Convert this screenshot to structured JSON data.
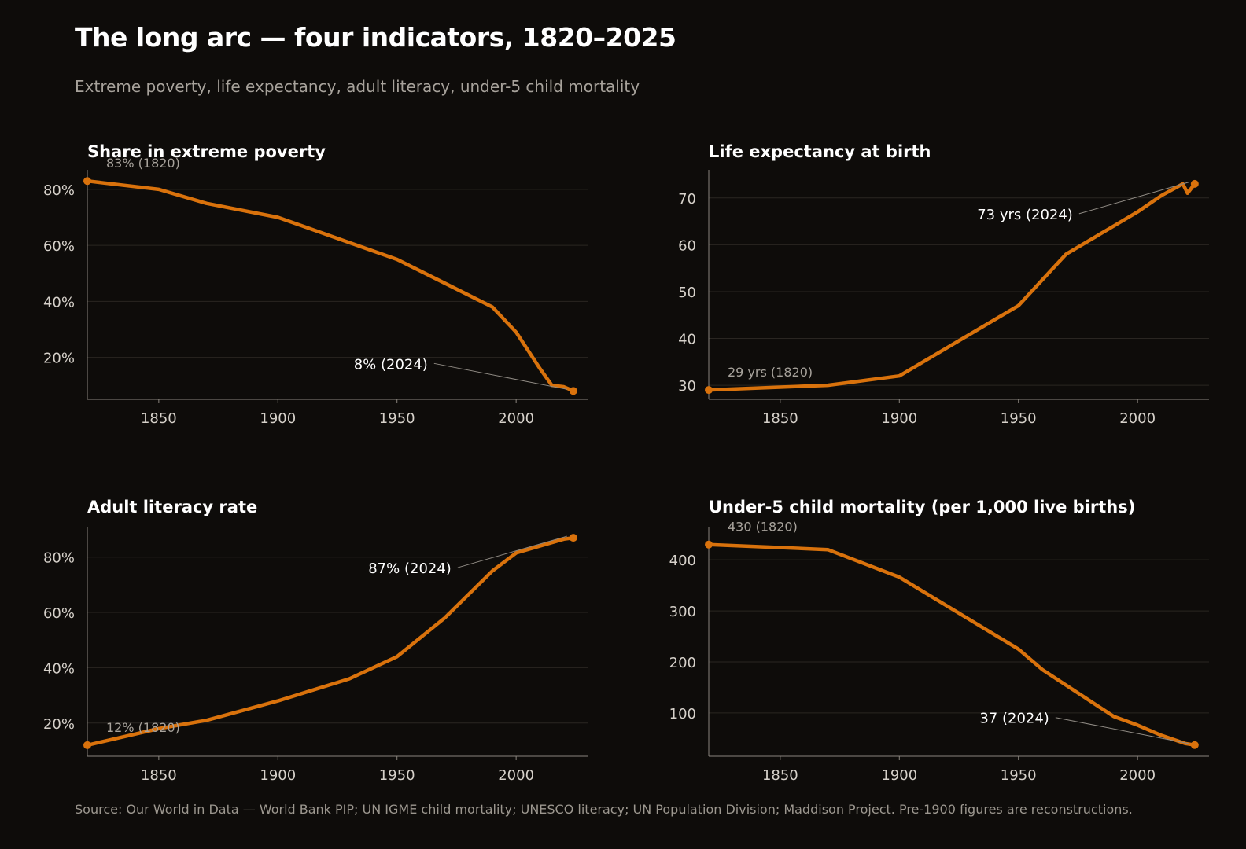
{
  "page": {
    "title": "The long arc — four indicators, 1820–2025",
    "subtitle": "Extreme poverty, life expectancy, adult literacy, under-5 child mortality",
    "source": "Source: Our World in Data — World Bank PIP; UN IGME child mortality; UNESCO literacy; UN Population Division; Maddison Project. Pre-1900 figures are reconstructions."
  },
  "colors": {
    "background": "#0e0c0a",
    "accent": "#d9720c"
  },
  "chart_data": [
    {
      "id": "poverty",
      "type": "line",
      "title": "Share in extreme poverty",
      "x": [
        1820,
        1850,
        1870,
        1900,
        1930,
        1950,
        1970,
        1990,
        2000,
        2010,
        2015,
        2020,
        2024
      ],
      "values": [
        83,
        80,
        75,
        70,
        61,
        55,
        46.5,
        38,
        29,
        16,
        10,
        9.5,
        8
      ],
      "xlim": [
        1820,
        2030
      ],
      "ylim": [
        5,
        87
      ],
      "xticks": [
        1850,
        1900,
        1950,
        2000
      ],
      "yticks": [
        20,
        40,
        60,
        80
      ],
      "ytick_labels": [
        "20%",
        "40%",
        "60%",
        "80%"
      ],
      "start_label": "83% (1820)",
      "end_label": "8% (2024)",
      "end_label_position": "left"
    },
    {
      "id": "life",
      "type": "line",
      "title": "Life expectancy at birth",
      "x": [
        1820,
        1870,
        1900,
        1950,
        1970,
        1990,
        2000,
        2010,
        2019,
        2021,
        2024
      ],
      "values": [
        29,
        30,
        32,
        47,
        58,
        64,
        67,
        70.5,
        73,
        71,
        73
      ],
      "xlim": [
        1820,
        2030
      ],
      "ylim": [
        27,
        76
      ],
      "xticks": [
        1850,
        1900,
        1950,
        2000
      ],
      "yticks": [
        30,
        40,
        50,
        60,
        70
      ],
      "ytick_labels": [
        "30",
        "40",
        "50",
        "60",
        "70"
      ],
      "start_label": "29 yrs (1820)",
      "end_label": "73 yrs (2024)",
      "end_label_position": "below-left"
    },
    {
      "id": "literacy",
      "type": "line",
      "title": "Adult literacy rate",
      "x": [
        1820,
        1850,
        1870,
        1900,
        1930,
        1950,
        1970,
        1990,
        2000,
        2010,
        2020,
        2024
      ],
      "values": [
        12,
        18,
        21,
        28,
        36,
        44,
        58,
        75,
        81.5,
        84,
        86.5,
        87
      ],
      "xlim": [
        1820,
        2030
      ],
      "ylim": [
        8,
        91
      ],
      "xticks": [
        1850,
        1900,
        1950,
        2000
      ],
      "yticks": [
        20,
        40,
        60,
        80
      ],
      "ytick_labels": [
        "20%",
        "40%",
        "60%",
        "80%"
      ],
      "start_label": "12% (1820)",
      "end_label": "87% (2024)",
      "end_label_position": "below-left"
    },
    {
      "id": "mortality",
      "type": "line",
      "title": "Under-5 child mortality (per 1,000 live births)",
      "x": [
        1820,
        1870,
        1900,
        1950,
        1960,
        1990,
        2000,
        2010,
        2020,
        2024
      ],
      "values": [
        430,
        420,
        366,
        225,
        185,
        93,
        76,
        56,
        40,
        37
      ],
      "xlim": [
        1820,
        2030
      ],
      "ylim": [
        15,
        465
      ],
      "xticks": [
        1850,
        1900,
        1950,
        2000
      ],
      "yticks": [
        100,
        200,
        300,
        400
      ],
      "ytick_labels": [
        "100",
        "200",
        "300",
        "400"
      ],
      "start_label": "430 (1820)",
      "end_label": "37 (2024)",
      "end_label_position": "left"
    }
  ]
}
